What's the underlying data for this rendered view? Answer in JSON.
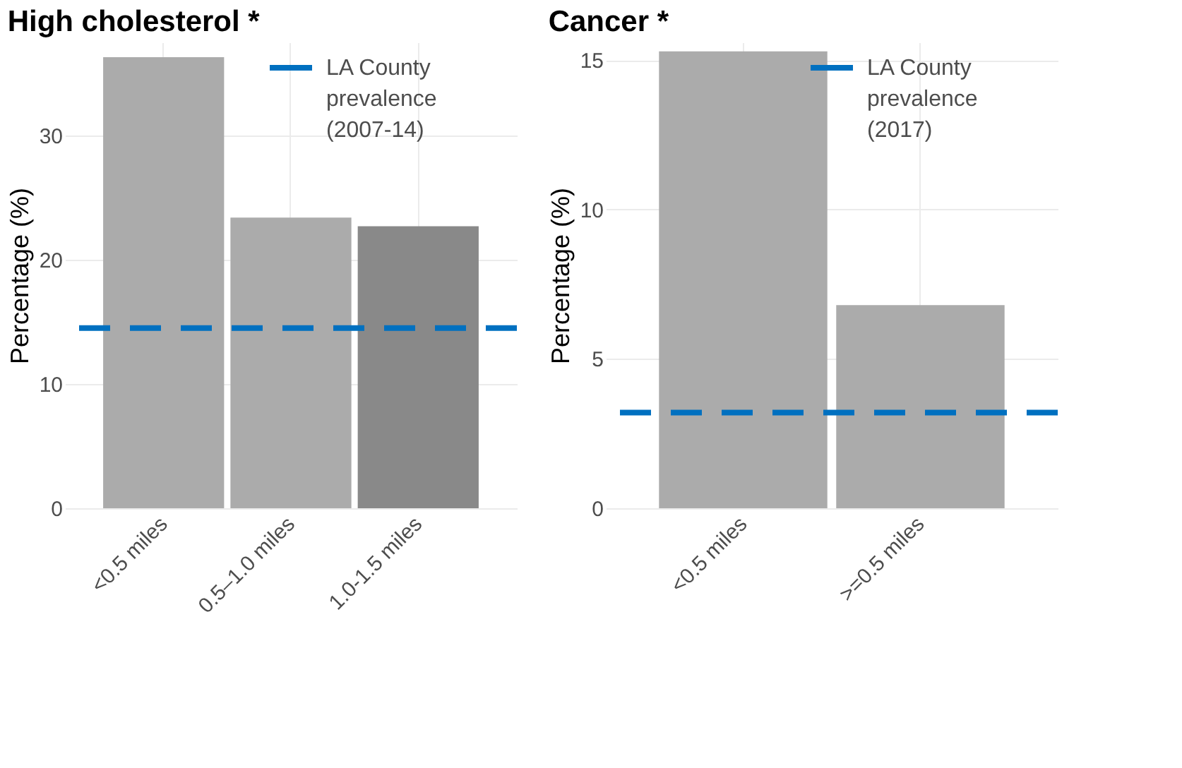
{
  "chart_data": [
    {
      "type": "bar",
      "title": "High cholesterol *",
      "ylabel": "Percentage (%)",
      "categories": [
        "<0.5 miles",
        "0.5–1.0 miles",
        "1.0-1.5 miles"
      ],
      "values": [
        36.3,
        23.4,
        22.7
      ],
      "colors": [
        "#ababab",
        "#ababab",
        "#898989"
      ],
      "ylim": [
        0,
        37.5
      ],
      "yticks": [
        0,
        10,
        20,
        30
      ],
      "grid": true,
      "legend": "top right",
      "ref_lines": [
        {
          "axis": "y",
          "value": 14.5,
          "label": "LA County\nprevalence\n(2007-14)",
          "color": "#0070c0",
          "line_style": "dashed"
        }
      ]
    },
    {
      "type": "bar",
      "title": "Cancer *",
      "ylabel": "Percentage (%)",
      "categories": [
        "<0.5 miles",
        ">=0.5 miles"
      ],
      "values": [
        15.3,
        6.8
      ],
      "colors": [
        "#ababab",
        "#ababab"
      ],
      "ylim": [
        0,
        15.6
      ],
      "yticks": [
        0,
        5,
        10,
        15
      ],
      "grid": true,
      "legend": "top right",
      "ref_lines": [
        {
          "axis": "y",
          "value": 3.2,
          "label": "LA County\nprevalence\n(2017)",
          "color": "#0070c0",
          "line_style": "dashed"
        }
      ]
    }
  ]
}
